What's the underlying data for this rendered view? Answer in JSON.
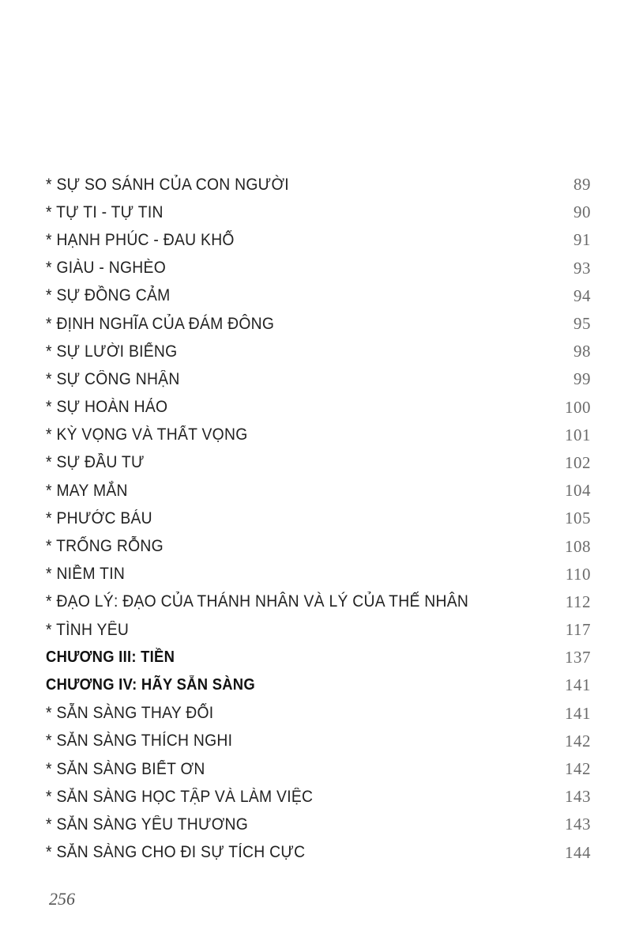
{
  "toc": [
    {
      "title": "* SỰ SO SÁNH CỦA CON NGƯỜI",
      "page": "89",
      "chapter": false
    },
    {
      "title": "* TỰ TI - TỰ TIN",
      "page": "90",
      "chapter": false
    },
    {
      "title": "* HẠNH PHÚC - ĐAU KHỔ",
      "page": "91",
      "chapter": false
    },
    {
      "title": "* GIÀU - NGHÈO",
      "page": "93",
      "chapter": false
    },
    {
      "title": "* SỰ ĐỒNG CẢM",
      "page": "94",
      "chapter": false
    },
    {
      "title": "* ĐỊNH NGHĨA CỦA ĐÁM ĐÔNG",
      "page": "95",
      "chapter": false
    },
    {
      "title": "* SỰ LƯỜI BIẾNG",
      "page": "98",
      "chapter": false
    },
    {
      "title": "* SỰ CÔNG NHẬN",
      "page": "99",
      "chapter": false
    },
    {
      "title": "* SỰ HOÀN HẢO",
      "page": "100",
      "chapter": false
    },
    {
      "title": "* KỲ VỌNG VÀ THẤT VỌNG",
      "page": "101",
      "chapter": false
    },
    {
      "title": "* SỰ ĐẦU TƯ",
      "page": "102",
      "chapter": false
    },
    {
      "title": "* MAY MẮN",
      "page": "104",
      "chapter": false
    },
    {
      "title": "* PHƯỚC BÁU",
      "page": "105",
      "chapter": false
    },
    {
      "title": "* TRỐNG RỖNG",
      "page": "108",
      "chapter": false
    },
    {
      "title": "* NIỀM TIN",
      "page": "110",
      "chapter": false
    },
    {
      "title": "* ĐẠO LÝ: ĐẠO CỦA THÁNH NHÂN VÀ LÝ CỦA THẾ NHÂN",
      "page": "112",
      "chapter": false
    },
    {
      "title": "* TÌNH YÊU",
      "page": "117",
      "chapter": false
    },
    {
      "title": "CHƯƠNG III: TIỀN",
      "page": "137",
      "chapter": true
    },
    {
      "title": "CHƯƠNG IV: HÃY SẴN SÀNG",
      "page": "141",
      "chapter": true
    },
    {
      "title": "* SẴN SÀNG THAY ĐỔI",
      "page": "141",
      "chapter": false
    },
    {
      "title": "* SẴN SÀNG THÍCH NGHI",
      "page": "142",
      "chapter": false
    },
    {
      "title": "* SẴN SÀNG BIẾT ƠN",
      "page": "142",
      "chapter": false
    },
    {
      "title": "* SẴN SÀNG HỌC TẬP VÀ LÀM VIỆC",
      "page": "143",
      "chapter": false
    },
    {
      "title": "* SẴN SÀNG YÊU THƯƠNG",
      "page": "143",
      "chapter": false
    },
    {
      "title": "* SẴN SÀNG CHO ĐI SỰ TÍCH CỰC",
      "page": "144",
      "chapter": false
    }
  ],
  "page_number": "256"
}
